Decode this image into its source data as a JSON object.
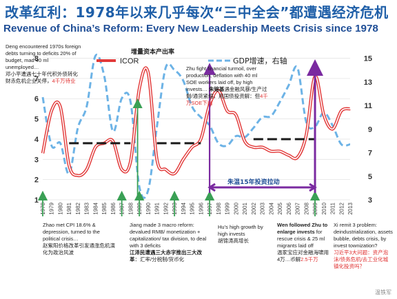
{
  "title_cn": "改革红利：1978年以来几乎每次“三中全会”都遭遇经济危机",
  "title_en": "Revenue of China’s Reform: Every New Leadership Meets Crisis since 1978",
  "colors": {
    "icor": "#e23a3a",
    "gdp": "#6db3e6",
    "mean": "#1a1a1a",
    "arrow": "#3aa055",
    "bracket": "#7a2aa0",
    "title": "#1f5fa8"
  },
  "chart_data": {
    "type": "line",
    "title": "",
    "x": [
      1978,
      1979,
      1980,
      1981,
      1982,
      1983,
      1984,
      1985,
      1986,
      1987,
      1988,
      1989,
      1990,
      1991,
      1992,
      1993,
      1994,
      1995,
      1996,
      1997,
      1998,
      1999,
      2000,
      2001,
      2002,
      2003,
      2004,
      2005,
      2006,
      2007,
      2008,
      2009,
      2010,
      2011,
      2012,
      2013
    ],
    "series": [
      {
        "name": "ICOR",
        "axis": "left",
        "values": [
          3.3,
          5.4,
          5.6,
          2.7,
          2.2,
          2.5,
          3.6,
          3.8,
          3.9,
          2.5,
          2.9,
          6.5,
          7.3,
          3.0,
          2.5,
          2.3,
          3.0,
          3.6,
          4.0,
          5.7,
          6.4,
          5.4,
          5.2,
          3.9,
          3.6,
          3.6,
          3.4,
          3.4,
          3.2,
          3.1,
          4.2,
          7.1,
          5.2,
          4.5,
          5.4,
          5.5
        ]
      },
      {
        "name": "GDP增速，右轴",
        "axis": "right",
        "values": [
          11.7,
          7.6,
          7.8,
          5.2,
          9.1,
          10.9,
          15.2,
          13.5,
          8.8,
          11.6,
          11.3,
          4.1,
          3.8,
          9.2,
          14.2,
          14.0,
          13.1,
          10.9,
          10.0,
          9.3,
          7.8,
          7.6,
          8.4,
          8.3,
          9.1,
          10.0,
          10.1,
          11.3,
          12.7,
          14.2,
          9.6,
          9.2,
          10.4,
          9.3,
          7.7,
          7.7
        ]
      }
    ],
    "mean_segments": [
      {
        "x_from": 1981,
        "x_to": 1988,
        "value": 3.8
      },
      {
        "x_from": 1991,
        "x_to": 1996,
        "value": 3.8
      },
      {
        "x_from": 2002,
        "x_to": 2009,
        "value": 4.0
      }
    ],
    "left_axis": {
      "ticks": [
        1,
        2,
        3,
        4,
        5,
        6,
        7,
        8
      ],
      "ylim": [
        1,
        8.7
      ]
    },
    "right_axis": {
      "ticks": [
        3,
        5,
        7,
        9,
        11,
        13,
        15
      ],
      "ylim": [
        3,
        16.2
      ]
    },
    "axis_label_cn": "增量资本产出率",
    "legend": [
      "ICOR",
      "GDP增速，右轴"
    ],
    "bracket_label": "朱温15年投资拉动"
  },
  "annotations": {
    "deng": {
      "en": "Deng encountered 1970s foreign debts turning to deficits 20% of budget, mad 40 ml unemployed…",
      "cn": "邓小平遭遇七十年代积外债转化财赤危机企业关停，",
      "cn_red": "4千万待业"
    },
    "zhu": {
      "en": "Zhu fight financial turmoil, over production, deflation with 40 ml SOE workers laid off, by high invests…",
      "cn_bold": "朱镕基",
      "cn": "遇金融风暴/生产过剩/通货紧缩，用国债投资解：但",
      "cn_red": "4千万SOE下岗"
    },
    "zhao": {
      "en": "Zhao met CPI 18.6% & depression, turned to the political crisis…",
      "cn": "赵紫阳价格改革引发通涨危机演化为政治风波"
    },
    "jiang": {
      "en": "Jiang made 3 macro reform: devalued RMB/ monetization + capitalization/ tax division, to deal with 3 deficits",
      "cn_a": "江泽民遭遇三大赤字推出三大改革",
      "cn_b": "：汇率/分税制/货币化"
    },
    "hu": {
      "en": "Hu’s high growth by high invests",
      "cn": "胡锦涛高增长"
    },
    "wen": {
      "en_bold": "Wen followed Zhu to enlarge invests",
      "en": "for rescue crisis & 25 ml migrants laid off",
      "cn": "温家宝应对金融海啸用4万…币解",
      "cn_red": "2.5千万"
    },
    "xi": {
      "en": "Xi remit 3 problem: deindustrialization, assets bubble, debts crisis, by invest townization?",
      "cn_red": "习近平3大问题：资产泡沫/债务危机/去工业化城镇化投资吗？"
    }
  },
  "watermark": "温铁军"
}
